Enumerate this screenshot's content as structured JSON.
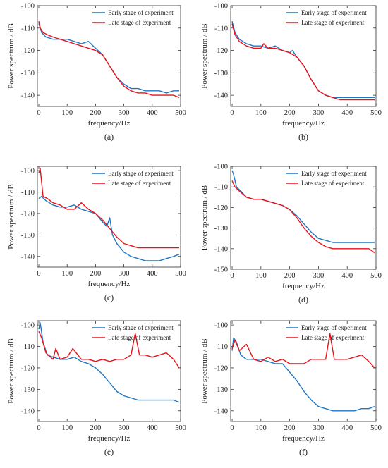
{
  "colors": {
    "early": "#1f77c4",
    "late": "#e8131a",
    "axis": "#333333"
  },
  "chart_data": [
    {
      "id": "a",
      "type": "line",
      "panel_label": "(a)",
      "xlabel": "frequency/Hz",
      "ylabel": "Power spectrum  / dB",
      "xlim": [
        -5,
        500
      ],
      "ylim": [
        -145,
        -100
      ],
      "xticks": [
        0,
        100,
        200,
        300,
        400,
        500
      ],
      "yticks": [
        -100,
        -110,
        -120,
        -130,
        -140
      ],
      "legend_position": "top-right",
      "grid": false,
      "series": [
        {
          "name": "Early stage of experiment",
          "color": "early",
          "x": [
            0,
            10,
            25,
            50,
            75,
            100,
            125,
            150,
            175,
            200,
            225,
            250,
            275,
            300,
            325,
            350,
            375,
            400,
            425,
            450,
            475,
            495
          ],
          "y": [
            -108,
            -112,
            -114,
            -115,
            -115,
            -115,
            -116,
            -117,
            -116,
            -119,
            -122,
            -127,
            -132,
            -135,
            -137,
            -137,
            -138,
            -138,
            -138,
            -139,
            -138,
            -138
          ]
        },
        {
          "name": "Late stage of experiment",
          "color": "late",
          "x": [
            0,
            5,
            15,
            30,
            50,
            75,
            100,
            125,
            150,
            175,
            200,
            225,
            250,
            275,
            300,
            325,
            350,
            375,
            400,
            425,
            450,
            475,
            495
          ],
          "y": [
            -107,
            -110,
            -112,
            -113,
            -114,
            -115,
            -116,
            -117,
            -118,
            -119,
            -120,
            -122,
            -127,
            -132,
            -136,
            -138,
            -139,
            -139,
            -140,
            -140,
            -140,
            -140,
            -141
          ]
        }
      ]
    },
    {
      "id": "b",
      "type": "line",
      "panel_label": "(b)",
      "xlabel": "frequency/Hz",
      "ylabel": "Power spectrum  / dB",
      "xlim": [
        -5,
        500
      ],
      "ylim": [
        -145,
        -100
      ],
      "xticks": [
        0,
        100,
        200,
        300,
        400,
        500
      ],
      "yticks": [
        -100,
        -110,
        -120,
        -130,
        -140
      ],
      "legend_position": "top-right",
      "grid": false,
      "series": [
        {
          "name": "Early stage of experiment",
          "color": "early",
          "x": [
            0,
            10,
            25,
            50,
            75,
            100,
            125,
            150,
            175,
            200,
            210,
            215,
            225,
            250,
            275,
            300,
            325,
            350,
            375,
            400,
            425,
            450,
            475,
            495
          ],
          "y": [
            -107,
            -112,
            -115,
            -117,
            -118,
            -118,
            -119,
            -118,
            -120,
            -121,
            -120,
            -121,
            -123,
            -127,
            -133,
            -138,
            -140,
            -141,
            -141,
            -141,
            -141,
            -141,
            -141,
            -141
          ]
        },
        {
          "name": "Late stage of experiment",
          "color": "late",
          "x": [
            0,
            10,
            25,
            50,
            75,
            100,
            110,
            125,
            150,
            175,
            200,
            225,
            250,
            275,
            300,
            325,
            350,
            375,
            400,
            425,
            450,
            475,
            495
          ],
          "y": [
            -108,
            -113,
            -116,
            -118,
            -119,
            -119,
            -117,
            -119,
            -119,
            -120,
            -121,
            -123,
            -127,
            -133,
            -138,
            -140,
            -141,
            -142,
            -142,
            -142,
            -142,
            -142,
            -142
          ]
        }
      ]
    },
    {
      "id": "c",
      "type": "line",
      "panel_label": "(c)",
      "xlabel": "frequency/Hz",
      "ylabel": "Power spectrum  / dB",
      "xlim": [
        -5,
        500
      ],
      "ylim": [
        -145,
        -98
      ],
      "xticks": [
        0,
        100,
        200,
        300,
        400,
        500
      ],
      "yticks": [
        -100,
        -110,
        -120,
        -130,
        -140
      ],
      "legend_position": "top-right",
      "grid": false,
      "series": [
        {
          "name": "Early stage of experiment",
          "color": "early",
          "x": [
            0,
            10,
            25,
            50,
            75,
            100,
            125,
            150,
            175,
            200,
            225,
            240,
            250,
            260,
            275,
            300,
            325,
            350,
            375,
            400,
            425,
            450,
            475,
            495
          ],
          "y": [
            -113,
            -112,
            -114,
            -116,
            -117,
            -117,
            -116,
            -118,
            -119,
            -120,
            -124,
            -126,
            -122,
            -130,
            -134,
            -138,
            -140,
            -141,
            -142,
            -142,
            -142,
            -141,
            -140,
            -139
          ]
        },
        {
          "name": "Late stage of experiment",
          "color": "late",
          "x": [
            0,
            5,
            15,
            30,
            50,
            75,
            100,
            125,
            150,
            175,
            200,
            225,
            250,
            275,
            300,
            325,
            350,
            375,
            400,
            425,
            450,
            475,
            495
          ],
          "y": [
            -101,
            -99,
            -112,
            -113,
            -115,
            -116,
            -118,
            -118,
            -115,
            -118,
            -120,
            -123,
            -127,
            -131,
            -134,
            -135,
            -136,
            -136,
            -136,
            -136,
            -136,
            -136,
            -136
          ]
        }
      ]
    },
    {
      "id": "d",
      "type": "line",
      "panel_label": "(d)",
      "xlabel": "frequency/Hz",
      "ylabel": "Power spectrum  / dB",
      "xlim": [
        -5,
        500
      ],
      "ylim": [
        -150,
        -100
      ],
      "xticks": [
        0,
        100,
        200,
        300,
        400,
        500
      ],
      "yticks": [
        -100,
        -110,
        -120,
        -130,
        -140,
        -150
      ],
      "legend_position": "top-right",
      "grid": false,
      "series": [
        {
          "name": "Early stage of experiment",
          "color": "early",
          "x": [
            0,
            5,
            15,
            30,
            50,
            75,
            100,
            125,
            150,
            175,
            200,
            225,
            250,
            275,
            300,
            325,
            350,
            375,
            400,
            425,
            450,
            475,
            495
          ],
          "y": [
            -102,
            -104,
            -110,
            -112,
            -115,
            -116,
            -116,
            -117,
            -118,
            -119,
            -121,
            -124,
            -128,
            -132,
            -135,
            -136,
            -137,
            -137,
            -137,
            -137,
            -137,
            -137,
            -137
          ]
        },
        {
          "name": "Late stage of experiment",
          "color": "late",
          "x": [
            0,
            10,
            25,
            50,
            75,
            100,
            125,
            150,
            175,
            200,
            225,
            250,
            275,
            300,
            325,
            350,
            375,
            400,
            425,
            450,
            475,
            495
          ],
          "y": [
            -107,
            -110,
            -112,
            -115,
            -116,
            -116,
            -117,
            -118,
            -119,
            -121,
            -125,
            -130,
            -134,
            -137,
            -139,
            -140,
            -140,
            -140,
            -140,
            -140,
            -140,
            -142
          ]
        }
      ]
    },
    {
      "id": "e",
      "type": "line",
      "panel_label": "(e)",
      "xlabel": "frequency/Hz",
      "ylabel": "Power spectrum  / dB",
      "xlim": [
        -5,
        500
      ],
      "ylim": [
        -145,
        -98
      ],
      "xticks": [
        0,
        100,
        200,
        300,
        400,
        500
      ],
      "yticks": [
        -100,
        -110,
        -120,
        -130,
        -140
      ],
      "legend_position": "top-right",
      "grid": false,
      "series": [
        {
          "name": "Early stage of experiment",
          "color": "early",
          "x": [
            0,
            5,
            15,
            30,
            50,
            75,
            100,
            125,
            150,
            175,
            200,
            225,
            250,
            275,
            300,
            325,
            350,
            375,
            400,
            425,
            450,
            475,
            495
          ],
          "y": [
            -102,
            -99,
            -108,
            -114,
            -115,
            -116,
            -116,
            -115,
            -117,
            -118,
            -120,
            -123,
            -127,
            -131,
            -133,
            -134,
            -135,
            -135,
            -135,
            -135,
            -135,
            -135,
            -136
          ]
        },
        {
          "name": "Late stage of experiment",
          "color": "late",
          "x": [
            0,
            10,
            25,
            50,
            60,
            75,
            100,
            120,
            150,
            175,
            200,
            225,
            250,
            275,
            300,
            325,
            340,
            355,
            375,
            400,
            425,
            450,
            475,
            495
          ],
          "y": [
            -103,
            -106,
            -113,
            -116,
            -111,
            -116,
            -115,
            -111,
            -116,
            -116,
            -117,
            -116,
            -117,
            -116,
            -116,
            -114,
            -104,
            -114,
            -114,
            -115,
            -114,
            -113,
            -116,
            -120
          ]
        }
      ]
    },
    {
      "id": "f",
      "type": "line",
      "panel_label": "(f)",
      "xlabel": "frequency/Hz",
      "ylabel": "Power spectrum  / dB",
      "xlim": [
        -5,
        500
      ],
      "ylim": [
        -145,
        -98
      ],
      "xticks": [
        0,
        100,
        200,
        300,
        400,
        500
      ],
      "yticks": [
        -100,
        -110,
        -120,
        -130,
        -140
      ],
      "legend_position": "top-right",
      "grid": false,
      "series": [
        {
          "name": "Early stage of experiment",
          "color": "early",
          "x": [
            0,
            5,
            15,
            30,
            50,
            75,
            100,
            125,
            150,
            175,
            200,
            225,
            250,
            275,
            300,
            325,
            350,
            375,
            400,
            425,
            450,
            475,
            495
          ],
          "y": [
            -112,
            -106,
            -108,
            -114,
            -116,
            -116,
            -116,
            -117,
            -118,
            -118,
            -122,
            -126,
            -131,
            -135,
            -138,
            -139,
            -140,
            -140,
            -140,
            -140,
            -139,
            -139,
            -138
          ]
        },
        {
          "name": "Late stage of experiment",
          "color": "late",
          "x": [
            0,
            10,
            25,
            50,
            75,
            100,
            125,
            150,
            175,
            200,
            225,
            250,
            275,
            300,
            325,
            340,
            355,
            375,
            400,
            425,
            450,
            475,
            495
          ],
          "y": [
            -111,
            -107,
            -112,
            -109,
            -116,
            -117,
            -115,
            -117,
            -116,
            -118,
            -118,
            -118,
            -116,
            -116,
            -116,
            -104,
            -116,
            -116,
            -116,
            -115,
            -114,
            -117,
            -120
          ]
        }
      ]
    }
  ]
}
